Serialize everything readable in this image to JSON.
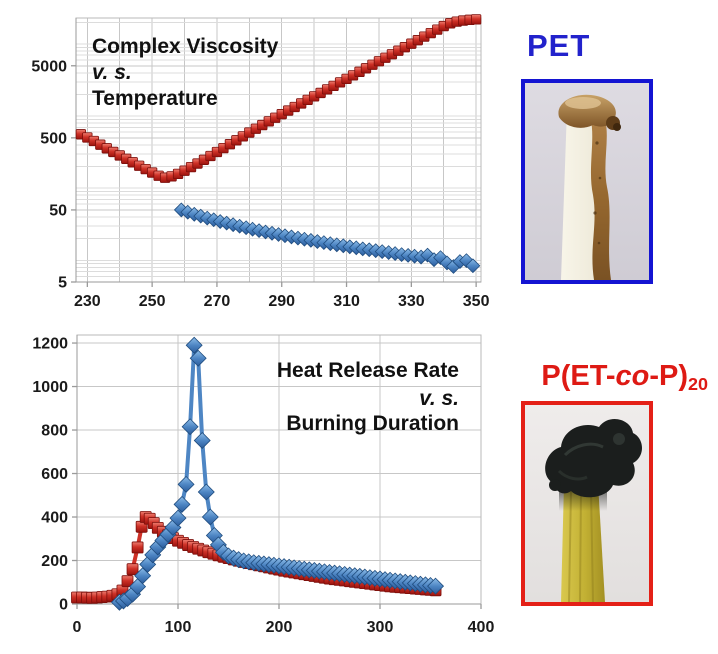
{
  "figure": {
    "background": "#ffffff",
    "grid_color": "#c7c7c7",
    "grid_minor_color": "#dcdcdc",
    "axis_color": "#9a9a9a",
    "tick_label_color": "#1a1a1a",
    "title_color": "#111111"
  },
  "chart_data": [
    {
      "id": "visc",
      "type": "scatter",
      "title_lines": [
        {
          "text": "Complex Viscosity",
          "italic": false
        },
        {
          "text": "v. s.",
          "italic": true
        },
        {
          "text": "Temperature",
          "italic": false
        }
      ],
      "xlabel": "",
      "ylabel": "",
      "y_scale": "log",
      "xlim": [
        226.5,
        351.5
      ],
      "ylim": [
        5,
        23000
      ],
      "x_ticks": [
        230,
        250,
        270,
        290,
        310,
        330,
        350
      ],
      "x_grid_step": 10,
      "y_ticks": [
        5,
        50,
        500,
        5000
      ],
      "legend": "none",
      "series": [
        {
          "name": "P(ET-co-P)20 complex viscosity",
          "color": "#CE3127",
          "marker": "square",
          "points": [
            [
              228,
              560
            ],
            [
              230,
              505
            ],
            [
              232,
              452
            ],
            [
              234,
              402
            ],
            [
              236,
              358
            ],
            [
              238,
              319
            ],
            [
              240,
              285
            ],
            [
              242,
              256
            ],
            [
              244,
              229
            ],
            [
              246,
              205
            ],
            [
              248,
              184
            ],
            [
              250,
              165
            ],
            [
              252,
              149
            ],
            [
              254,
              140
            ],
            [
              256,
              146
            ],
            [
              258,
              158
            ],
            [
              260,
              175
            ],
            [
              262,
              196
            ],
            [
              264,
              220
            ],
            [
              266,
              248
            ],
            [
              268,
              280
            ],
            [
              270,
              318
            ],
            [
              272,
              360
            ],
            [
              274,
              408
            ],
            [
              276,
              462
            ],
            [
              278,
              524
            ],
            [
              280,
              592
            ],
            [
              282,
              668
            ],
            [
              284,
              752
            ],
            [
              286,
              846
            ],
            [
              288,
              950
            ],
            [
              290,
              1065
            ],
            [
              292,
              1195
            ],
            [
              294,
              1340
            ],
            [
              296,
              1500
            ],
            [
              298,
              1680
            ],
            [
              300,
              1880
            ],
            [
              302,
              2100
            ],
            [
              304,
              2350
            ],
            [
              306,
              2630
            ],
            [
              308,
              2940
            ],
            [
              310,
              3290
            ],
            [
              312,
              3680
            ],
            [
              314,
              4120
            ],
            [
              316,
              4610
            ],
            [
              318,
              5160
            ],
            [
              320,
              5770
            ],
            [
              322,
              6460
            ],
            [
              324,
              7230
            ],
            [
              326,
              8090
            ],
            [
              328,
              9050
            ],
            [
              330,
              10130
            ],
            [
              332,
              11330
            ],
            [
              334,
              12680
            ],
            [
              336,
              14190
            ],
            [
              338,
              15880
            ],
            [
              340,
              17770
            ],
            [
              342,
              19400
            ],
            [
              344,
              20500
            ],
            [
              346,
              21200
            ],
            [
              348,
              21700
            ],
            [
              350,
              22000
            ]
          ]
        },
        {
          "name": "PET complex viscosity",
          "color": "#4E86C4",
          "marker": "diamond",
          "points": [
            [
              259,
              50
            ],
            [
              261,
              46.5
            ],
            [
              263,
              43.5
            ],
            [
              265,
              41
            ],
            [
              267,
              38.5
            ],
            [
              269,
              36.5
            ],
            [
              271,
              34.5
            ],
            [
              273,
              32.8
            ],
            [
              275,
              31.2
            ],
            [
              277,
              29.7
            ],
            [
              279,
              28.3
            ],
            [
              281,
              27
            ],
            [
              283,
              25.8
            ],
            [
              285,
              24.7
            ],
            [
              287,
              23.7
            ],
            [
              289,
              22.8
            ],
            [
              291,
              21.9
            ],
            [
              293,
              21.1
            ],
            [
              295,
              20.3
            ],
            [
              297,
              19.6
            ],
            [
              299,
              18.9
            ],
            [
              301,
              18.2
            ],
            [
              303,
              17.6
            ],
            [
              305,
              17
            ],
            [
              307,
              16.4
            ],
            [
              309,
              15.9
            ],
            [
              311,
              15.4
            ],
            [
              313,
              14.9
            ],
            [
              315,
              14.4
            ],
            [
              317,
              14
            ],
            [
              319,
              13.6
            ],
            [
              321,
              13.2
            ],
            [
              323,
              12.8
            ],
            [
              325,
              12.4
            ],
            [
              327,
              12
            ],
            [
              329,
              11.7
            ],
            [
              331,
              11.4
            ],
            [
              333,
              11.1
            ],
            [
              335,
              11.8
            ],
            [
              337,
              10.2
            ],
            [
              339,
              10.9
            ],
            [
              341,
              9.2
            ],
            [
              343,
              8.2
            ],
            [
              345,
              9.6
            ],
            [
              347,
              9.9
            ],
            [
              349,
              8.4
            ]
          ]
        }
      ]
    },
    {
      "id": "hrr",
      "type": "scatter",
      "title_lines": [
        {
          "text": "Heat Release Rate",
          "italic": false
        },
        {
          "text": "v. s.",
          "italic": true
        },
        {
          "text": "Burning Duration",
          "italic": false
        }
      ],
      "xlabel": "",
      "ylabel": "",
      "y_scale": "linear",
      "xlim": [
        0,
        400
      ],
      "ylim": [
        0,
        1237
      ],
      "x_ticks": [
        0,
        100,
        200,
        300,
        400
      ],
      "x_grid_step": 100,
      "y_ticks": [
        0,
        200,
        400,
        600,
        800,
        1000,
        1200
      ],
      "legend": "none",
      "series": [
        {
          "name": "P(ET-co-P)20 heat release rate",
          "color": "#CE3127",
          "marker": "square",
          "points": [
            [
              0,
              30
            ],
            [
              5,
              30
            ],
            [
              10,
              29
            ],
            [
              15,
              28
            ],
            [
              20,
              30
            ],
            [
              25,
              32
            ],
            [
              30,
              34
            ],
            [
              35,
              38
            ],
            [
              40,
              45
            ],
            [
              45,
              62
            ],
            [
              50,
              105
            ],
            [
              55,
              160
            ],
            [
              60,
              260
            ],
            [
              64,
              355
            ],
            [
              68,
              400
            ],
            [
              72,
              392
            ],
            [
              76,
              372
            ],
            [
              80,
              350
            ],
            [
              85,
              332
            ],
            [
              90,
              316
            ],
            [
              95,
              303
            ],
            [
              100,
              291
            ],
            [
              105,
              281
            ],
            [
              110,
              271
            ],
            [
              115,
              262
            ],
            [
              120,
              254
            ],
            [
              125,
              246
            ],
            [
              130,
              238
            ],
            [
              135,
              231
            ],
            [
              140,
              224
            ],
            [
              145,
              217
            ],
            [
              150,
              211
            ],
            [
              155,
              205
            ],
            [
              160,
              199
            ],
            [
              165,
              193
            ],
            [
              170,
              188
            ],
            [
              175,
              183
            ],
            [
              180,
              178
            ],
            [
              185,
              173
            ],
            [
              190,
              168
            ],
            [
              195,
              163
            ],
            [
              200,
              158
            ],
            [
              205,
              153
            ],
            [
              210,
              149
            ],
            [
              215,
              145
            ],
            [
              220,
              141
            ],
            [
              225,
              137
            ],
            [
              230,
              133
            ],
            [
              235,
              129
            ],
            [
              240,
              125
            ],
            [
              245,
              121
            ],
            [
              250,
              117
            ],
            [
              255,
              114
            ],
            [
              260,
              111
            ],
            [
              265,
              108
            ],
            [
              270,
              105
            ],
            [
              275,
              102
            ],
            [
              280,
              99
            ],
            [
              285,
              96
            ],
            [
              290,
              93
            ],
            [
              295,
              90
            ],
            [
              300,
              87
            ],
            [
              305,
              84
            ],
            [
              310,
              81
            ],
            [
              315,
              79
            ],
            [
              320,
              77
            ],
            [
              325,
              75
            ],
            [
              330,
              73
            ],
            [
              335,
              71
            ],
            [
              340,
              69
            ],
            [
              345,
              67
            ],
            [
              350,
              65
            ],
            [
              355,
              63
            ]
          ]
        },
        {
          "name": "PET heat release rate",
          "color": "#4E86C4",
          "marker": "diamond",
          "points": [
            [
              42,
              8
            ],
            [
              46,
              14
            ],
            [
              50,
              25
            ],
            [
              55,
              45
            ],
            [
              60,
              80
            ],
            [
              65,
              130
            ],
            [
              70,
              182
            ],
            [
              75,
              226
            ],
            [
              80,
              262
            ],
            [
              85,
              292
            ],
            [
              90,
              320
            ],
            [
              95,
              352
            ],
            [
              100,
              395
            ],
            [
              104,
              458
            ],
            [
              108,
              550
            ],
            [
              112,
              815
            ],
            [
              116,
              1190
            ],
            [
              120,
              1130
            ],
            [
              124,
              752
            ],
            [
              128,
              515
            ],
            [
              132,
              400
            ],
            [
              136,
              315
            ],
            [
              140,
              272
            ],
            [
              145,
              238
            ],
            [
              150,
              221
            ],
            [
              155,
              211
            ],
            [
              160,
              204
            ],
            [
              165,
              198
            ],
            [
              170,
              194
            ],
            [
              175,
              190
            ],
            [
              180,
              187
            ],
            [
              185,
              184
            ],
            [
              190,
              181
            ],
            [
              195,
              178
            ],
            [
              200,
              175
            ],
            [
              205,
              172
            ],
            [
              210,
              169
            ],
            [
              215,
              166
            ],
            [
              220,
              163
            ],
            [
              225,
              160
            ],
            [
              230,
              157
            ],
            [
              235,
              154
            ],
            [
              240,
              151
            ],
            [
              245,
              148
            ],
            [
              250,
              145
            ],
            [
              255,
              142
            ],
            [
              260,
              139
            ],
            [
              265,
              136
            ],
            [
              270,
              133
            ],
            [
              275,
              130
            ],
            [
              280,
              127
            ],
            [
              285,
              124
            ],
            [
              290,
              121
            ],
            [
              295,
              118
            ],
            [
              300,
              115
            ],
            [
              305,
              112
            ],
            [
              310,
              109
            ],
            [
              315,
              106
            ],
            [
              320,
              103
            ],
            [
              325,
              100
            ],
            [
              330,
              97
            ],
            [
              335,
              94
            ],
            [
              340,
              91
            ],
            [
              345,
              88
            ],
            [
              350,
              85
            ],
            [
              355,
              82
            ]
          ]
        }
      ]
    }
  ],
  "side_panel": {
    "pet_label": "PET",
    "pet_color": "#2222CC",
    "pet_border_color": "#1414D2",
    "copolymer": {
      "prefix": "P(ET-",
      "italic": "co",
      "suffix": "-P)",
      "subscript": "20"
    },
    "copolymer_color": "#DE1A14",
    "copolymer_border_color": "#E42017"
  }
}
